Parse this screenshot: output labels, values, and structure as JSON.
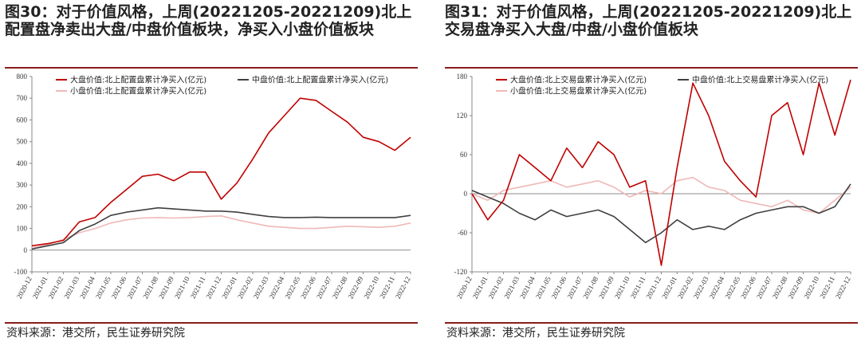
{
  "left": {
    "title": "图30：对于价值风格，上周(20221205-20221209)北上配置盘净卖出大盘/中盘价值板块，净买入小盘价值板块",
    "source": "资料来源：港交所，民生证券研究院"
  },
  "right": {
    "title": "图31：对于价值风格，上周(20221205-20221209)北上交易盘净买入大盘/中盘/小盘价值板块",
    "source": "资料来源：港交所，民生证券研究院"
  },
  "chart_data": [
    {
      "type": "line",
      "title": "",
      "xlabel": "",
      "ylabel": "",
      "ylim": [
        -100,
        800
      ],
      "yticks": [
        -100,
        0,
        100,
        200,
        300,
        400,
        500,
        600,
        700,
        800
      ],
      "xticks": [
        "2020-12",
        "2021-01",
        "2021-02",
        "2021-03",
        "2021-04",
        "2021-05",
        "2021-06",
        "2021-07",
        "2021-08",
        "2021-09",
        "2021-10",
        "2021-11",
        "2021-12",
        "2022-01",
        "2022-02",
        "2022-03",
        "2022-04",
        "2022-05",
        "2022-06",
        "2022-07",
        "2022-08",
        "2022-09",
        "2022-10",
        "2022-11",
        "2022-12"
      ],
      "grid": false,
      "legend": "top",
      "series": [
        {
          "name": "大盘价值:北上配置盘累计净买入(亿元)",
          "color": "#c00000",
          "values": [
            20,
            30,
            45,
            130,
            150,
            220,
            280,
            340,
            350,
            320,
            360,
            360,
            235,
            310,
            420,
            540,
            620,
            700,
            690,
            640,
            590,
            520,
            500,
            460,
            520
          ]
        },
        {
          "name": "中盘价值:北上配置盘累计净买入(亿元)",
          "color": "#404040",
          "values": [
            5,
            20,
            35,
            90,
            120,
            160,
            175,
            185,
            195,
            190,
            185,
            180,
            180,
            175,
            165,
            155,
            150,
            150,
            152,
            150,
            150,
            150,
            150,
            150,
            160
          ]
        },
        {
          "name": "小盘价值:北上配置盘累计净买入(亿元)",
          "color": "#f0b8b8",
          "values": [
            10,
            25,
            50,
            80,
            100,
            125,
            140,
            148,
            150,
            148,
            150,
            155,
            158,
            140,
            125,
            110,
            105,
            100,
            100,
            105,
            110,
            108,
            105,
            110,
            125
          ]
        }
      ]
    },
    {
      "type": "line",
      "title": "",
      "xlabel": "",
      "ylabel": "",
      "ylim": [
        -120,
        180
      ],
      "yticks": [
        -120,
        -60,
        0,
        60,
        120,
        180
      ],
      "xticks": [
        "2020-12",
        "2021-01",
        "2021-02",
        "2021-03",
        "2021-04",
        "2021-05",
        "2021-06",
        "2021-07",
        "2021-08",
        "2021-09",
        "2021-10",
        "2021-11",
        "2021-12",
        "2022-01",
        "2022-02",
        "2022-03",
        "2022-04",
        "2022-05",
        "2022-06",
        "2022-07",
        "2022-08",
        "2022-09",
        "2022-10",
        "2022-11",
        "2022-12"
      ],
      "grid": false,
      "legend": "top",
      "series": [
        {
          "name": "大盘价值:北上交易盘累计净买入(亿元)",
          "color": "#c00000",
          "values": [
            0,
            -40,
            -10,
            60,
            40,
            20,
            70,
            40,
            80,
            60,
            10,
            20,
            -110,
            40,
            170,
            120,
            50,
            20,
            -5,
            120,
            140,
            60,
            170,
            90,
            175
          ]
        },
        {
          "name": "中盘价值:北上交易盘累计净买入(亿元)",
          "color": "#404040",
          "values": [
            5,
            -5,
            -15,
            -30,
            -40,
            -25,
            -35,
            -30,
            -25,
            -35,
            -55,
            -75,
            -60,
            -40,
            -55,
            -50,
            -55,
            -40,
            -30,
            -25,
            -20,
            -20,
            -30,
            -20,
            15
          ]
        },
        {
          "name": "小盘价值:北上交易盘累计净买入(亿元)",
          "color": "#f0b8b8",
          "values": [
            0,
            -10,
            5,
            10,
            15,
            20,
            10,
            15,
            20,
            10,
            -5,
            5,
            0,
            20,
            25,
            10,
            5,
            -10,
            -15,
            -20,
            -10,
            -25,
            -30,
            -10,
            10
          ]
        }
      ]
    }
  ]
}
